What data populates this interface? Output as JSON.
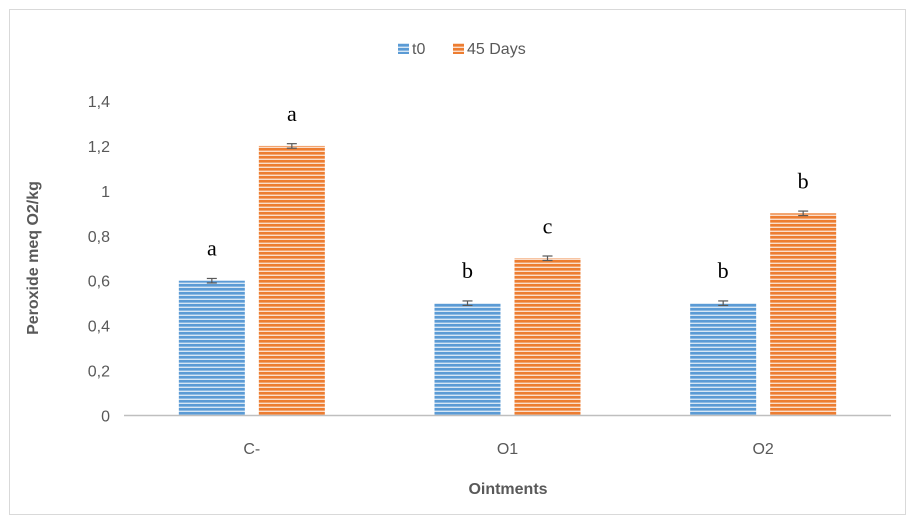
{
  "chart_data": {
    "type": "bar",
    "title": "",
    "xlabel": "Ointments",
    "ylabel": "Peroxide meq O2/kg",
    "categories": [
      "C-",
      "O1",
      "O2"
    ],
    "series": [
      {
        "name": "t0",
        "values": [
          0.6,
          0.5,
          0.5
        ],
        "errors": [
          0.01,
          0.01,
          0.01
        ],
        "color": "#5B9BD5",
        "labels": [
          "a",
          "b",
          "b"
        ]
      },
      {
        "name": "45 Days",
        "values": [
          1.2,
          0.7,
          0.9
        ],
        "errors": [
          0.01,
          0.01,
          0.01
        ],
        "color": "#ED7D31",
        "labels": [
          "a",
          "c",
          "b"
        ]
      }
    ],
    "ylim": [
      0,
      1.4
    ],
    "yticks": [
      "0",
      "0,2",
      "0,4",
      "0,6",
      "0,8",
      "1",
      "1,2",
      "1,4"
    ],
    "ytick_values": [
      0,
      0.2,
      0.4,
      0.6,
      0.8,
      1.0,
      1.2,
      1.4
    ],
    "grid": false,
    "legend_position": "top"
  }
}
